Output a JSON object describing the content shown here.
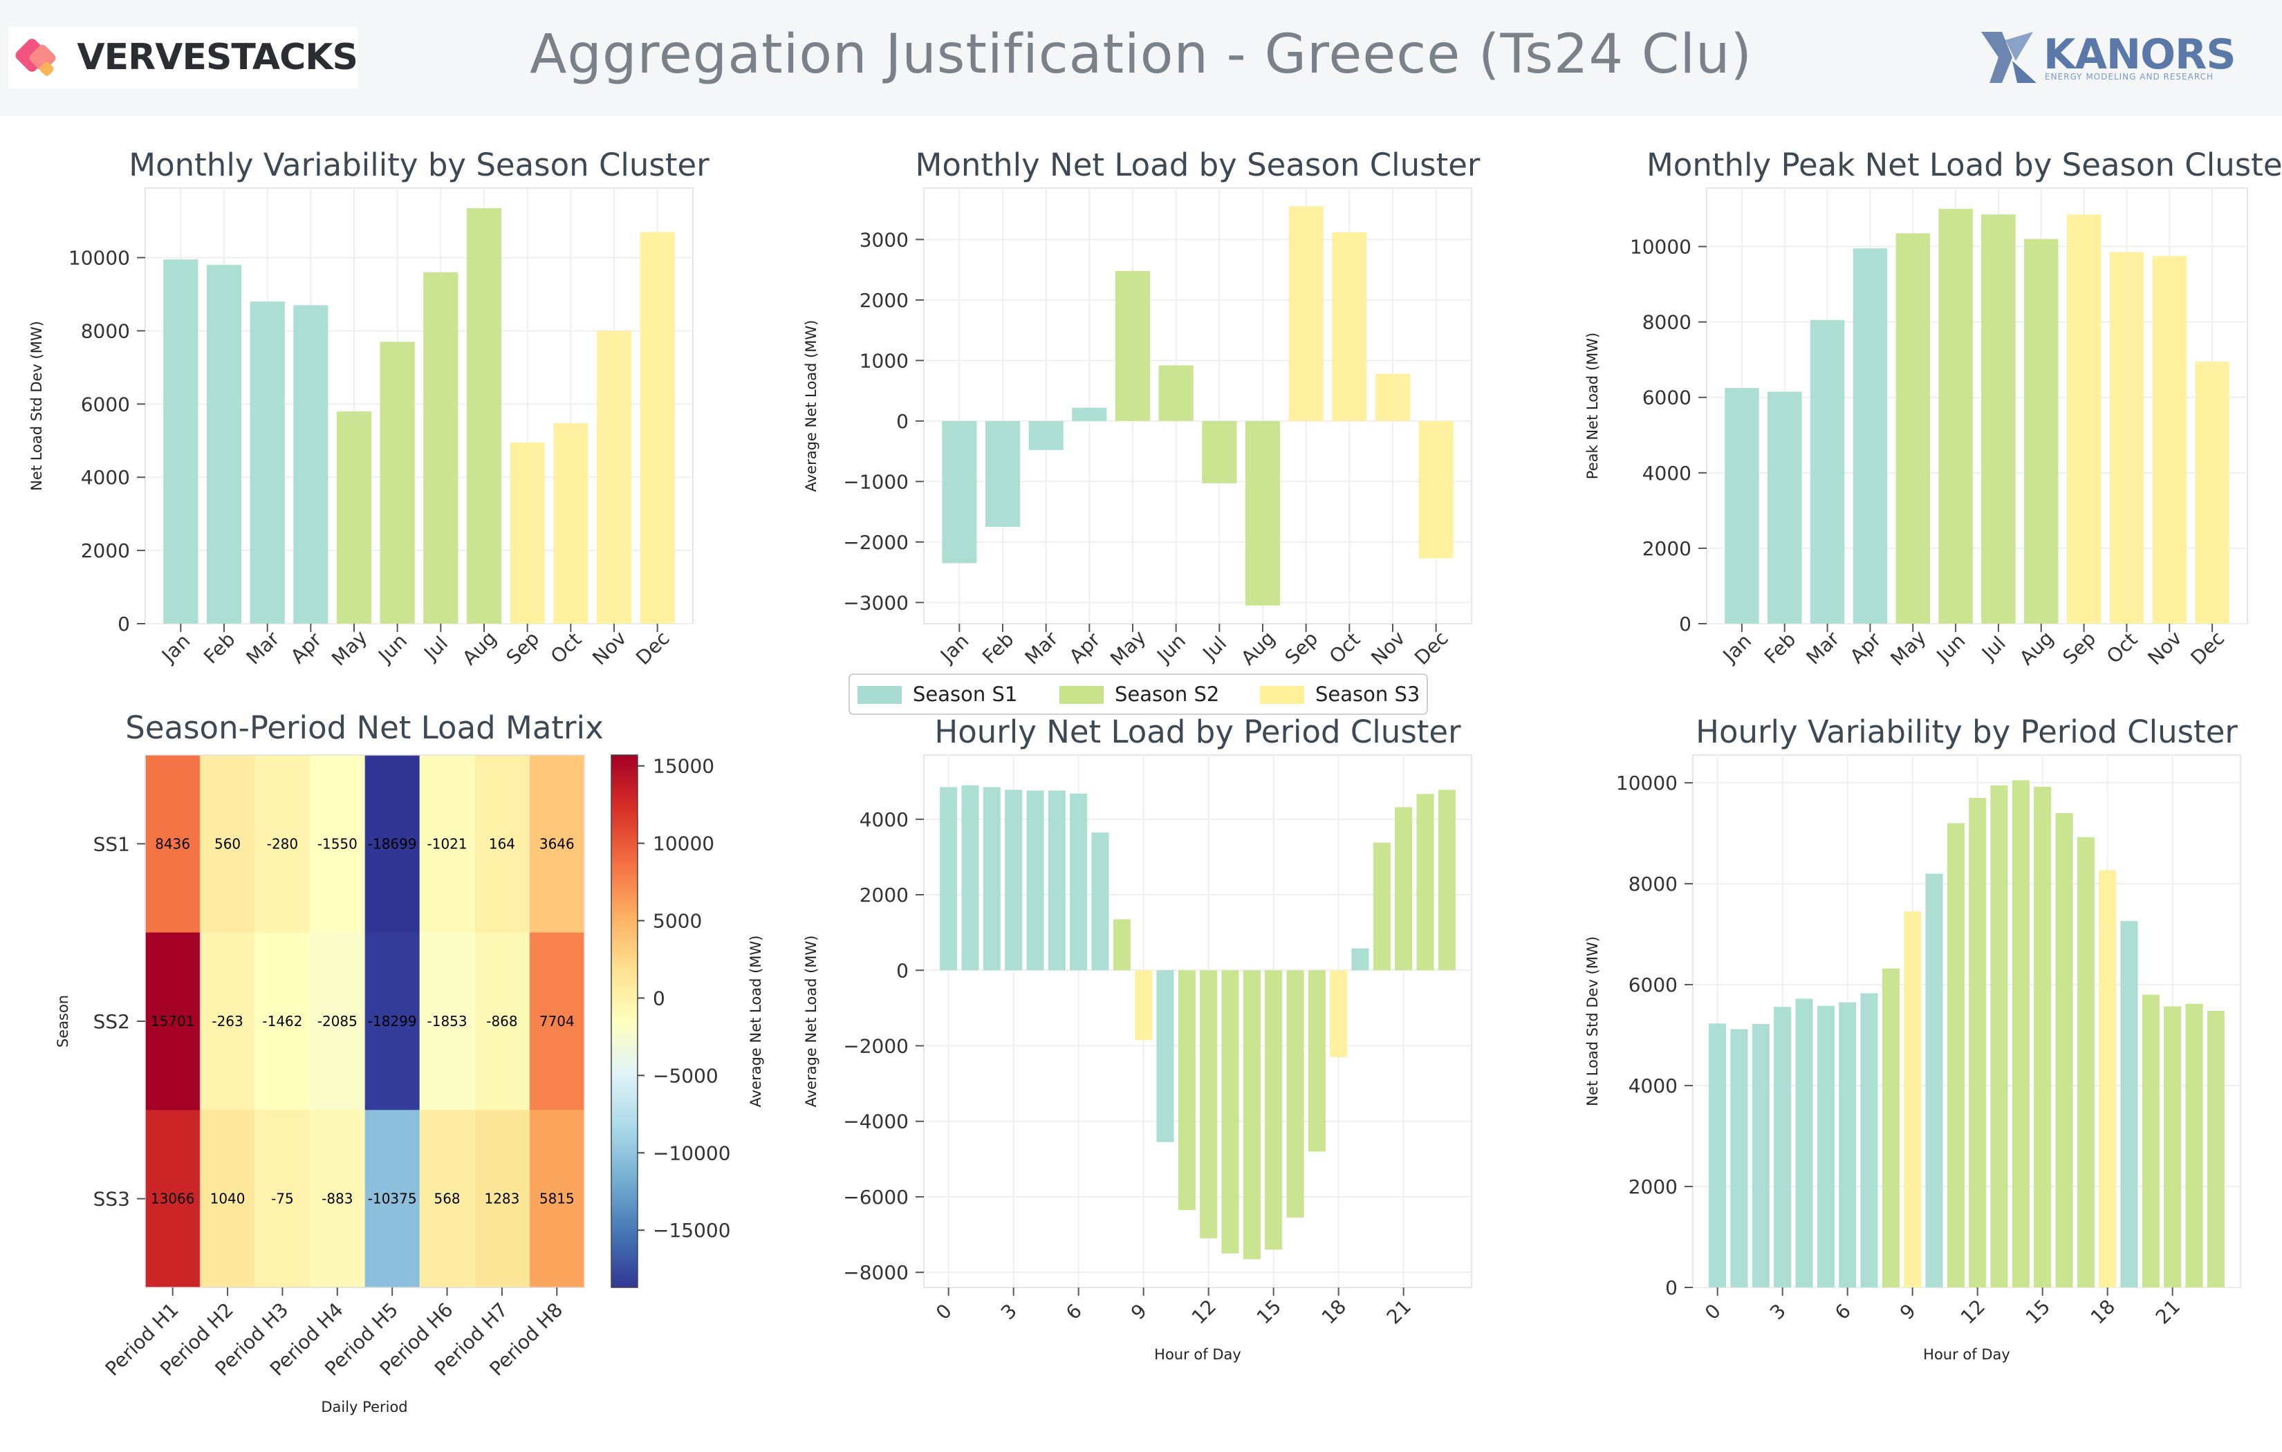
{
  "header": {
    "title": "Aggregation Justification - Greece (Ts24 Clu)",
    "brand_left": "VERVESTACKS",
    "brand_right": "KANORS",
    "brand_right_sub": "ENERGY MODELING AND RESEARCH"
  },
  "colors": {
    "season_s1": "#a8dcd1",
    "season_s2": "#c8e38c",
    "season_s3": "#fff09a"
  },
  "legend": {
    "items": [
      {
        "label": "Season S1",
        "color": "#a8dcd1"
      },
      {
        "label": "Season S2",
        "color": "#c8e38c"
      },
      {
        "label": "Season S3",
        "color": "#fff09a"
      }
    ]
  },
  "chart_data": [
    {
      "id": "monthly-variability",
      "type": "bar",
      "title": "Monthly Variability by Season Cluster",
      "xlabel": "",
      "ylabel": "Net Load Std Dev (MW)",
      "categories": [
        "Jan",
        "Feb",
        "Mar",
        "Apr",
        "May",
        "Jun",
        "Jul",
        "Aug",
        "Sep",
        "Oct",
        "Nov",
        "Dec"
      ],
      "values": [
        9950,
        9800,
        8800,
        8700,
        5800,
        7700,
        9600,
        11350,
        4950,
        5480,
        8000,
        10700
      ],
      "clusters": [
        "S1",
        "S1",
        "S1",
        "S1",
        "S2",
        "S2",
        "S2",
        "S2",
        "S3",
        "S3",
        "S3",
        "S3"
      ],
      "ylim": [
        0,
        11900
      ],
      "yticks": [
        0,
        2000,
        4000,
        6000,
        8000,
        10000
      ]
    },
    {
      "id": "monthly-net-load",
      "type": "bar",
      "title": "Monthly Net Load by Season Cluster",
      "xlabel": "",
      "ylabel": "Average Net Load (MW)",
      "categories": [
        "Jan",
        "Feb",
        "Mar",
        "Apr",
        "May",
        "Jun",
        "Jul",
        "Aug",
        "Sep",
        "Oct",
        "Nov",
        "Dec"
      ],
      "values": [
        -2350,
        -1750,
        -480,
        220,
        2480,
        920,
        -1030,
        -3050,
        3550,
        3120,
        780,
        -2270
      ],
      "clusters": [
        "S1",
        "S1",
        "S1",
        "S1",
        "S2",
        "S2",
        "S2",
        "S2",
        "S3",
        "S3",
        "S3",
        "S3"
      ],
      "ylim": [
        -3350,
        3850
      ],
      "yticks": [
        -3000,
        -2000,
        -1000,
        0,
        1000,
        2000,
        3000
      ]
    },
    {
      "id": "monthly-peak-net-load",
      "type": "bar",
      "title": "Monthly Peak Net Load by Season Cluster",
      "xlabel": "",
      "ylabel": "Peak Net Load (MW)",
      "categories": [
        "Jan",
        "Feb",
        "Mar",
        "Apr",
        "May",
        "Jun",
        "Jul",
        "Aug",
        "Sep",
        "Oct",
        "Nov",
        "Dec"
      ],
      "values": [
        6250,
        6150,
        8050,
        9950,
        10350,
        11000,
        10850,
        10200,
        10850,
        9850,
        9750,
        6950
      ],
      "clusters": [
        "S1",
        "S1",
        "S1",
        "S1",
        "S2",
        "S2",
        "S2",
        "S2",
        "S3",
        "S3",
        "S3",
        "S3"
      ],
      "ylim": [
        0,
        11550
      ],
      "yticks": [
        0,
        2000,
        4000,
        6000,
        8000,
        10000
      ]
    },
    {
      "id": "season-period-matrix",
      "type": "heatmap",
      "title": "Season-Period Net Load Matrix",
      "xlabel": "Daily Period",
      "ylabel": "Season",
      "colorbar_label": "Average Net Load (MW)",
      "x_categories": [
        "Period H1",
        "Period H2",
        "Period H3",
        "Period H4",
        "Period H5",
        "Period H6",
        "Period H7",
        "Period H8"
      ],
      "y_categories": [
        "SS1",
        "SS2",
        "SS3"
      ],
      "values": [
        [
          8436,
          560,
          -280,
          -1550,
          -18699,
          -1021,
          164,
          3646
        ],
        [
          15701,
          -263,
          -1462,
          -2085,
          -18299,
          -1853,
          -868,
          7704
        ],
        [
          13066,
          1040,
          -75,
          -883,
          -10375,
          568,
          1283,
          5815
        ]
      ],
      "colorbar_ticks": [
        15000,
        10000,
        5000,
        0,
        -5000,
        -10000,
        -15000
      ],
      "vmin": -18699,
      "vmax": 15701
    },
    {
      "id": "hourly-net-load",
      "type": "bar",
      "title": "Hourly Net Load by Period Cluster",
      "xlabel": "Hour of Day",
      "ylabel": "Average Net Load (MW)",
      "x": [
        0,
        1,
        2,
        3,
        4,
        5,
        6,
        7,
        8,
        9,
        10,
        11,
        12,
        13,
        14,
        15,
        16,
        17,
        18,
        19,
        20,
        21,
        22,
        23
      ],
      "values": [
        4850,
        4900,
        4850,
        4780,
        4760,
        4760,
        4680,
        3650,
        1350,
        -1850,
        -4550,
        -6350,
        -7100,
        -7500,
        -7650,
        -7400,
        -6550,
        -4800,
        -2300,
        580,
        3380,
        4320,
        4670,
        4780
      ],
      "clusters": [
        "S1",
        "S1",
        "S1",
        "S1",
        "S1",
        "S1",
        "S1",
        "S1",
        "S2",
        "S3",
        "S1",
        "S2",
        "S2",
        "S2",
        "S2",
        "S2",
        "S2",
        "S2",
        "S3",
        "S1",
        "S2",
        "S2",
        "S2",
        "S2"
      ],
      "ylim": [
        -8400,
        5700
      ],
      "xticks": [
        0,
        3,
        6,
        9,
        12,
        15,
        18,
        21
      ],
      "yticks": [
        -8000,
        -6000,
        -4000,
        -2000,
        0,
        2000,
        4000
      ]
    },
    {
      "id": "hourly-variability",
      "type": "bar",
      "title": "Hourly Variability by Period Cluster",
      "xlabel": "Hour of Day",
      "ylabel": "Net Load Std Dev (MW)",
      "x": [
        0,
        1,
        2,
        3,
        4,
        5,
        6,
        7,
        8,
        9,
        10,
        11,
        12,
        13,
        14,
        15,
        16,
        17,
        18,
        19,
        20,
        21,
        22,
        23
      ],
      "values": [
        5230,
        5120,
        5220,
        5560,
        5720,
        5580,
        5650,
        5830,
        6320,
        7450,
        8200,
        9200,
        9700,
        9950,
        10050,
        9920,
        9400,
        8920,
        8270,
        7260,
        5800,
        5570,
        5620,
        5480
      ],
      "clusters": [
        "S1",
        "S1",
        "S1",
        "S1",
        "S1",
        "S1",
        "S1",
        "S1",
        "S2",
        "S3",
        "S1",
        "S2",
        "S2",
        "S2",
        "S2",
        "S2",
        "S2",
        "S2",
        "S3",
        "S1",
        "S2",
        "S2",
        "S2",
        "S2"
      ],
      "ylim": [
        0,
        10550
      ],
      "xticks": [
        0,
        3,
        6,
        9,
        12,
        15,
        18,
        21
      ],
      "yticks": [
        0,
        2000,
        4000,
        6000,
        8000,
        10000
      ]
    }
  ]
}
